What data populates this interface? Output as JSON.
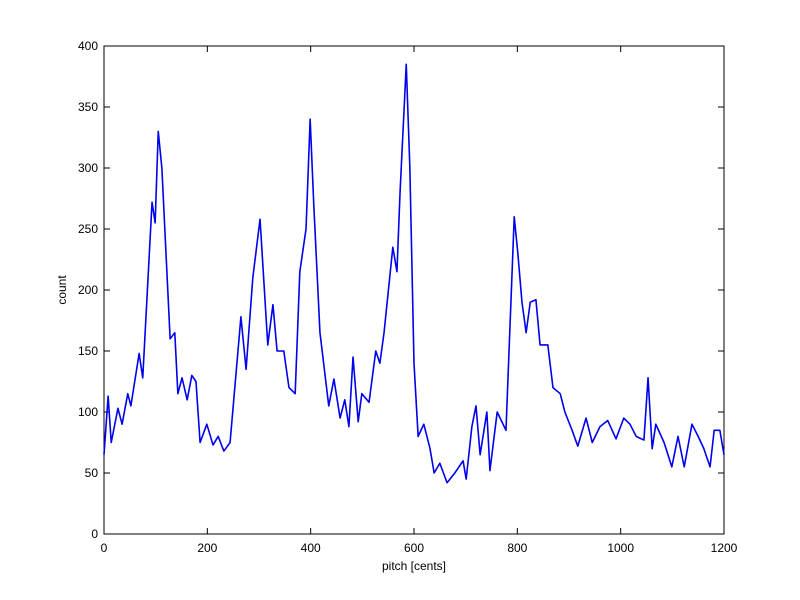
{
  "chart_data": {
    "type": "line",
    "xlabel": "pitch [cents]",
    "ylabel": "count",
    "xlim": [
      0,
      1200
    ],
    "ylim": [
      0,
      400
    ],
    "xticks": [
      0,
      200,
      400,
      600,
      800,
      1000,
      1200
    ],
    "yticks": [
      0,
      50,
      100,
      150,
      200,
      250,
      300,
      350,
      400
    ],
    "grid": false,
    "x": [
      0,
      8,
      14,
      27,
      35,
      46,
      52,
      68,
      75,
      93,
      99,
      105,
      112,
      128,
      137,
      143,
      151,
      161,
      170,
      178,
      186,
      199,
      211,
      221,
      232,
      244,
      265,
      275,
      288,
      302,
      317,
      327,
      335,
      348,
      358,
      370,
      379,
      391,
      399,
      406,
      418,
      435,
      445,
      457,
      466,
      474,
      482,
      492,
      499,
      513,
      526,
      534,
      542,
      559,
      567,
      573,
      585,
      592,
      600,
      608,
      619,
      631,
      639,
      650,
      664,
      679,
      695,
      701,
      712,
      720,
      728,
      741,
      747,
      761,
      778,
      794,
      801,
      809,
      817,
      825,
      836,
      844,
      859,
      869,
      883,
      892,
      906,
      917,
      933,
      945,
      960,
      975,
      991,
      1006,
      1018,
      1030,
      1045,
      1053,
      1061,
      1068,
      1084,
      1099,
      1111,
      1123,
      1138,
      1150,
      1161,
      1173,
      1181,
      1192,
      1200
    ],
    "series": [
      {
        "color": "#0000ee",
        "values": [
          65,
          113,
          75,
          103,
          90,
          115,
          105,
          148,
          128,
          272,
          255,
          330,
          300,
          160,
          165,
          115,
          128,
          110,
          130,
          125,
          75,
          90,
          73,
          80,
          68,
          75,
          178,
          135,
          210,
          258,
          155,
          188,
          150,
          150,
          120,
          115,
          215,
          250,
          340,
          270,
          165,
          105,
          127,
          95,
          110,
          88,
          145,
          92,
          115,
          108,
          150,
          140,
          165,
          235,
          215,
          280,
          385,
          300,
          140,
          80,
          90,
          70,
          50,
          58,
          42,
          50,
          60,
          45,
          88,
          105,
          65,
          100,
          52,
          100,
          85,
          260,
          230,
          190,
          165,
          190,
          192,
          155,
          155,
          120,
          115,
          100,
          85,
          72,
          95,
          75,
          88,
          93,
          78,
          95,
          90,
          80,
          77,
          128,
          70,
          90,
          75,
          55,
          80,
          55,
          90,
          80,
          70,
          55,
          85,
          85,
          65
        ]
      }
    ]
  }
}
